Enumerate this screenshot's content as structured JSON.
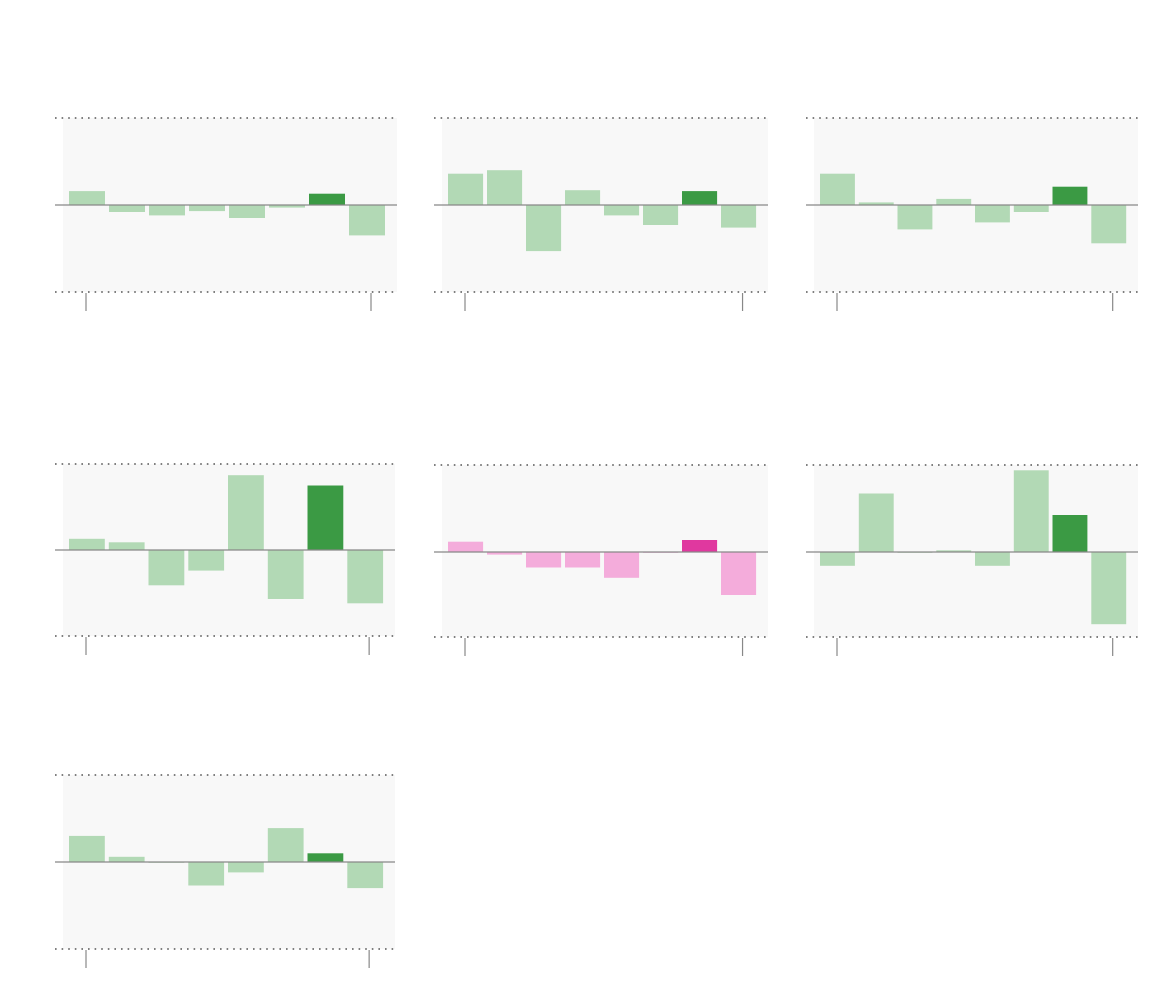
{
  "colors": {
    "green_light": "#b2d9b5",
    "green_dark": "#3b9a44",
    "pink_light": "#f4acdb",
    "pink_dark": "#e0389f",
    "panel_bg": "#f8f8f8",
    "axis": "#888888",
    "grid_dots": "#555555"
  },
  "chart_data": [
    {
      "type": "bar",
      "theme": "green",
      "ylim": [
        -1,
        1
      ],
      "values": [
        0.16,
        -0.08,
        -0.12,
        -0.07,
        -0.15,
        -0.03,
        0.13,
        -0.35
      ],
      "highlight_index": 6
    },
    {
      "type": "bar",
      "theme": "green",
      "ylim": [
        -1,
        1
      ],
      "values": [
        0.36,
        0.4,
        -0.53,
        0.17,
        -0.12,
        -0.23,
        0.16,
        -0.26
      ],
      "highlight_index": 6
    },
    {
      "type": "bar",
      "theme": "green",
      "ylim": [
        -1,
        1
      ],
      "values": [
        0.36,
        0.03,
        -0.28,
        0.07,
        -0.2,
        -0.08,
        0.21,
        -0.44
      ],
      "highlight_index": 6
    },
    {
      "type": "bar",
      "theme": "green",
      "ylim": [
        -1,
        1
      ],
      "values": [
        0.13,
        0.09,
        -0.41,
        -0.24,
        0.87,
        -0.57,
        0.75,
        -0.62
      ],
      "highlight_index": 6
    },
    {
      "type": "bar",
      "theme": "pink",
      "ylim": [
        -1,
        1
      ],
      "values": [
        0.12,
        -0.03,
        -0.18,
        -0.18,
        -0.3,
        0.0,
        0.14,
        -0.5
      ],
      "highlight_index": 6
    },
    {
      "type": "bar",
      "theme": "green",
      "ylim": [
        -1,
        1
      ],
      "values": [
        -0.16,
        0.68,
        0.0,
        0.02,
        -0.16,
        0.95,
        0.43,
        -0.84
      ],
      "highlight_index": 6
    },
    {
      "type": "bar",
      "theme": "green",
      "ylim": [
        -1,
        1
      ],
      "values": [
        0.3,
        0.06,
        0.0,
        -0.27,
        -0.12,
        0.39,
        0.1,
        -0.3
      ],
      "highlight_index": 6
    }
  ]
}
